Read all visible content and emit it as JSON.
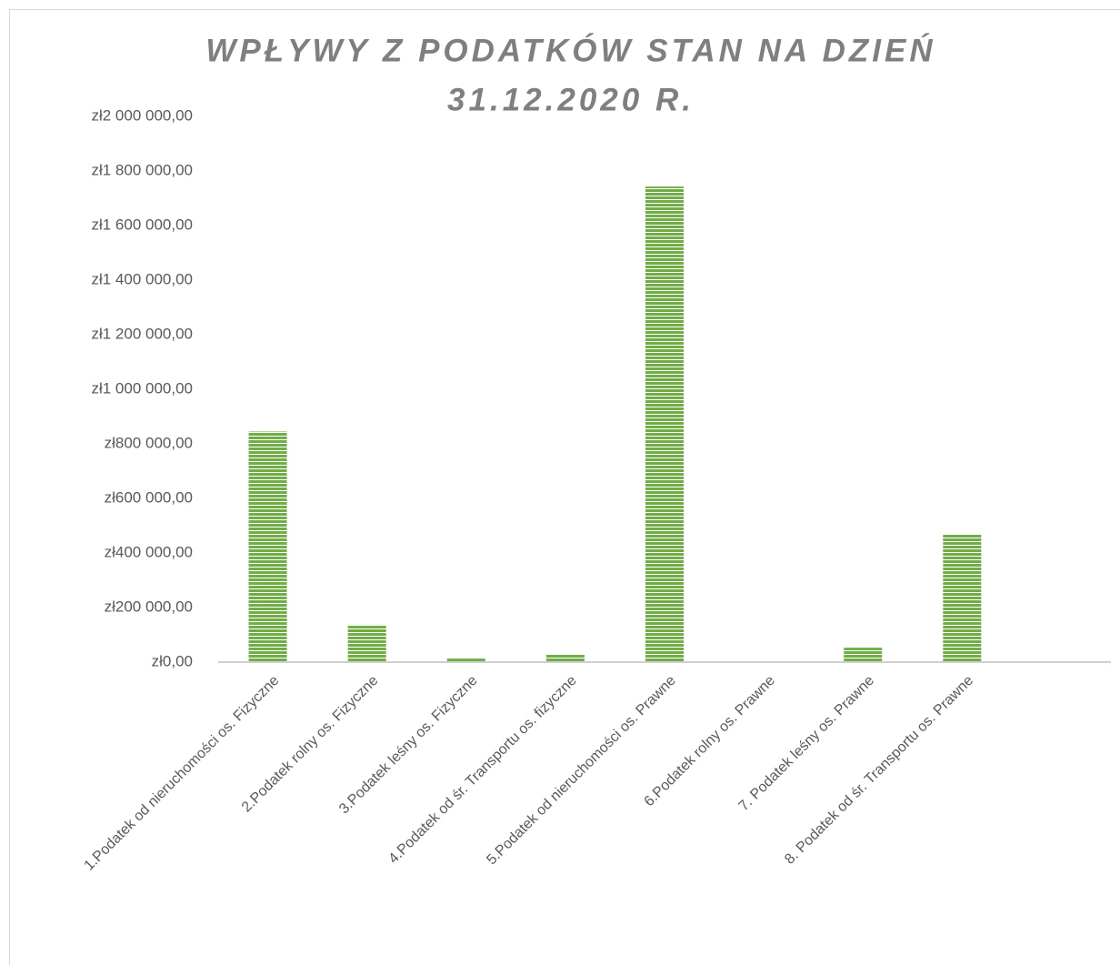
{
  "chart_data": {
    "type": "bar",
    "title": [
      "WPŁYWY Z PODATKÓW  STAN NA DZIEŃ",
      "31.12.2020 R."
    ],
    "categories": [
      "1.Podatek od nieruchomości os. Fizyczne",
      "2.Podatek rolny os. Fizyczne",
      "3.Podatek leśny os. Fizyczne",
      "4.Podatek od śr. Transportu os. fizyczne",
      "5.Podatek od nieruchomości os. Prawne",
      "6.Podatek rolny os. Prawne",
      "7. Podatek leśny os. Prawne",
      "8. Podatek od śr. Transportu os. Prawne",
      null
    ],
    "values": [
      845000,
      137000,
      13000,
      30000,
      1743000,
      0,
      53000,
      470000,
      null
    ],
    "color": "#70ad47",
    "ylim": [
      0,
      2000000
    ],
    "yticks": [
      {
        "value": 0,
        "label": "zł0,00"
      },
      {
        "value": 200000,
        "label": "zł200 000,00"
      },
      {
        "value": 400000,
        "label": "zł400 000,00"
      },
      {
        "value": 600000,
        "label": "zł600 000,00"
      },
      {
        "value": 800000,
        "label": "zł800 000,00"
      },
      {
        "value": 1000000,
        "label": "zł1 000 000,00"
      },
      {
        "value": 1200000,
        "label": "zł1 200 000,00"
      },
      {
        "value": 1400000,
        "label": "zł1 400 000,00"
      },
      {
        "value": 1600000,
        "label": "zł1 600 000,00"
      },
      {
        "value": 1800000,
        "label": "zł1 800 000,00"
      },
      {
        "value": 2000000,
        "label": "zł2 000 000,00"
      }
    ],
    "grid": false
  }
}
